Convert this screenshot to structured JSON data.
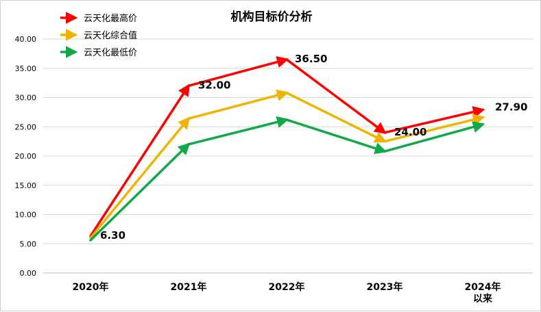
{
  "chart_data": {
    "type": "line",
    "title": "机构目标价分析",
    "categories": [
      [
        "2020年"
      ],
      [
        "2021年"
      ],
      [
        "2022年"
      ],
      [
        "2023年"
      ],
      [
        "2024年",
        "以来"
      ]
    ],
    "ylim": [
      0,
      40
    ],
    "yticks": [
      "0.00",
      "5.00",
      "10.00",
      "15.00",
      "20.00",
      "25.00",
      "30.00",
      "35.00",
      "40.00"
    ],
    "grid": true,
    "legend_position": "top-left",
    "series": [
      {
        "name": "云天化最高价",
        "color": "#ff0000",
        "values": [
          6.3,
          32.0,
          36.5,
          24.0,
          27.9
        ]
      },
      {
        "name": "云天化综合值",
        "color": "#f0b400",
        "values": [
          6.0,
          26.4,
          30.8,
          22.5,
          26.6
        ]
      },
      {
        "name": "云天化最低价",
        "color": "#11a84a",
        "values": [
          5.6,
          22.0,
          26.2,
          20.8,
          25.4
        ]
      }
    ],
    "data_labels": [
      "6.30",
      "32.00",
      "36.50",
      "24.00",
      "27.90"
    ]
  }
}
